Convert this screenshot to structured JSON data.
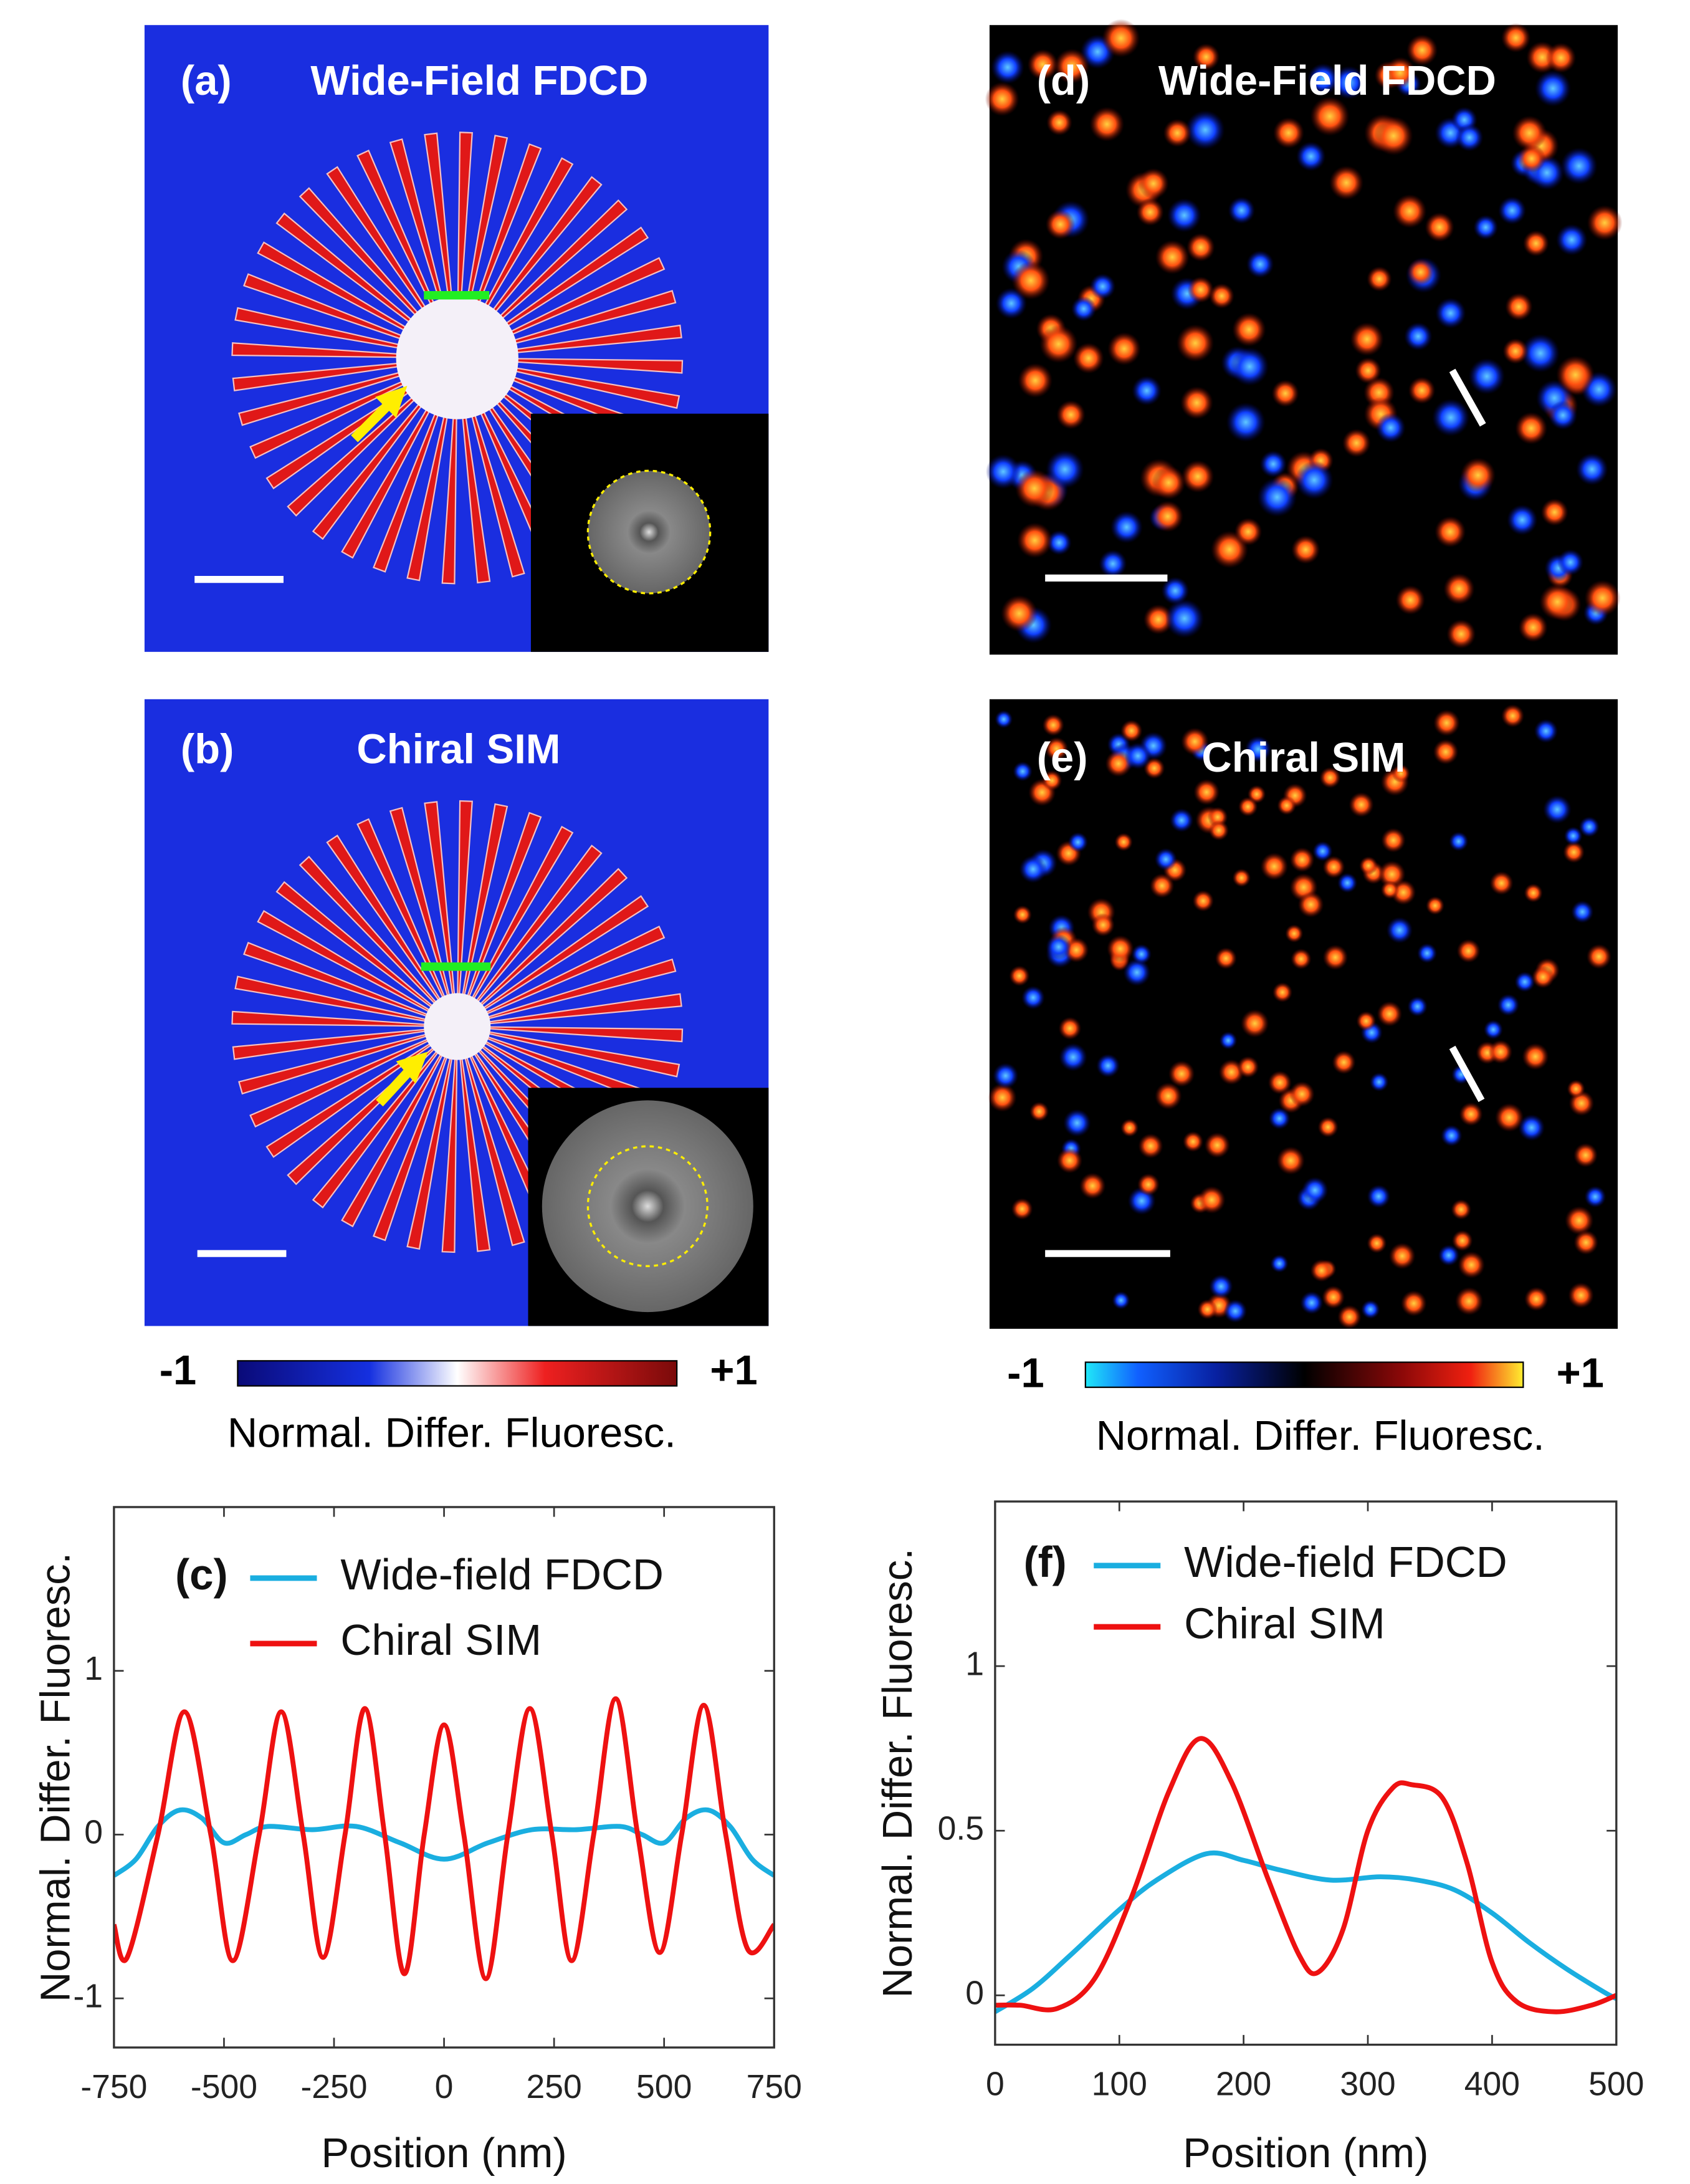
{
  "panels": [
    {
      "label": "(a)",
      "title": "Wide-Field FDCD"
    },
    {
      "label": "(b)",
      "title": "Chiral SIM"
    },
    {
      "label": "(d)",
      "title": "Wide-Field FDCD"
    },
    {
      "label": "(e)",
      "title": "Chiral SIM"
    }
  ],
  "colorbars": [
    {
      "min_label": "-1",
      "max_label": "+1",
      "label": "Normal. Differ. Fluoresc."
    },
    {
      "min_label": "-1",
      "max_label": "+1",
      "label": "Normal. Differ. Fluoresc."
    }
  ],
  "chart_data": [
    {
      "type": "line",
      "annotation": "(c)",
      "xlabel": "Position (nm)",
      "ylabel": "Normal. Differ. Fluoresc.",
      "xlim": [
        -750,
        750
      ],
      "ylim": [
        -1.3,
        2
      ],
      "xticks": [
        -750,
        -500,
        -250,
        0,
        250,
        500,
        750
      ],
      "yticks": [
        -1,
        0,
        1
      ],
      "legend": "upper left",
      "series": [
        {
          "name": "Wide-field FDCD",
          "color": "#1aaee0",
          "x": [
            -750,
            -700,
            -650,
            -600,
            -550,
            -500,
            -450,
            -400,
            -300,
            -200,
            -100,
            0,
            100,
            200,
            300,
            400,
            450,
            500,
            550,
            600,
            650,
            700,
            750
          ],
          "values": [
            -0.25,
            -0.15,
            0.05,
            0.15,
            0.1,
            -0.05,
            0.0,
            0.05,
            0.03,
            0.05,
            -0.05,
            -0.15,
            -0.05,
            0.03,
            0.03,
            0.05,
            0.0,
            -0.05,
            0.1,
            0.15,
            0.05,
            -0.15,
            -0.25
          ]
        },
        {
          "name": "Chiral SIM",
          "color": "#ee1111",
          "x": [
            -750,
            -720,
            -650,
            -590,
            -530,
            -480,
            -420,
            -370,
            -320,
            -275,
            -225,
            -180,
            -135,
            -90,
            -45,
            0,
            45,
            95,
            145,
            195,
            245,
            290,
            340,
            390,
            440,
            490,
            540,
            590,
            640,
            690,
            750
          ],
          "values": [
            -0.55,
            -0.75,
            0,
            0.75,
            0,
            -0.77,
            0,
            0.75,
            0,
            -0.75,
            0,
            0.77,
            0,
            -0.85,
            0,
            0.67,
            0,
            -0.88,
            0,
            0.77,
            0,
            -0.77,
            0,
            0.83,
            0,
            -0.72,
            0,
            0.79,
            0,
            -0.7,
            -0.55
          ]
        }
      ]
    },
    {
      "type": "line",
      "annotation": "(f)",
      "xlabel": "Position (nm)",
      "ylabel": "Normal. Differ. Fluoresc.",
      "xlim": [
        0,
        500
      ],
      "ylim": [
        -0.15,
        1.5
      ],
      "xticks": [
        0,
        100,
        200,
        300,
        400,
        500
      ],
      "yticks": [
        0,
        0.5,
        1
      ],
      "legend": "upper left",
      "series": [
        {
          "name": "Wide-field FDCD",
          "color": "#1aaee0",
          "x": [
            0,
            30,
            60,
            100,
            130,
            170,
            200,
            230,
            270,
            310,
            340,
            370,
            400,
            430,
            460,
            490,
            500
          ],
          "values": [
            -0.05,
            0.02,
            0.12,
            0.26,
            0.35,
            0.43,
            0.41,
            0.38,
            0.35,
            0.36,
            0.35,
            0.32,
            0.25,
            0.16,
            0.08,
            0.01,
            -0.01
          ]
        },
        {
          "name": "Chiral SIM",
          "color": "#ee1111",
          "x": [
            0,
            20,
            50,
            80,
            110,
            140,
            165,
            190,
            220,
            245,
            260,
            280,
            300,
            320,
            335,
            360,
            380,
            400,
            420,
            450,
            480,
            500
          ],
          "values": [
            -0.03,
            -0.03,
            -0.04,
            0.05,
            0.3,
            0.62,
            0.78,
            0.65,
            0.35,
            0.12,
            0.07,
            0.2,
            0.5,
            0.63,
            0.64,
            0.6,
            0.4,
            0.1,
            -0.02,
            -0.05,
            -0.03,
            0
          ]
        }
      ]
    }
  ]
}
